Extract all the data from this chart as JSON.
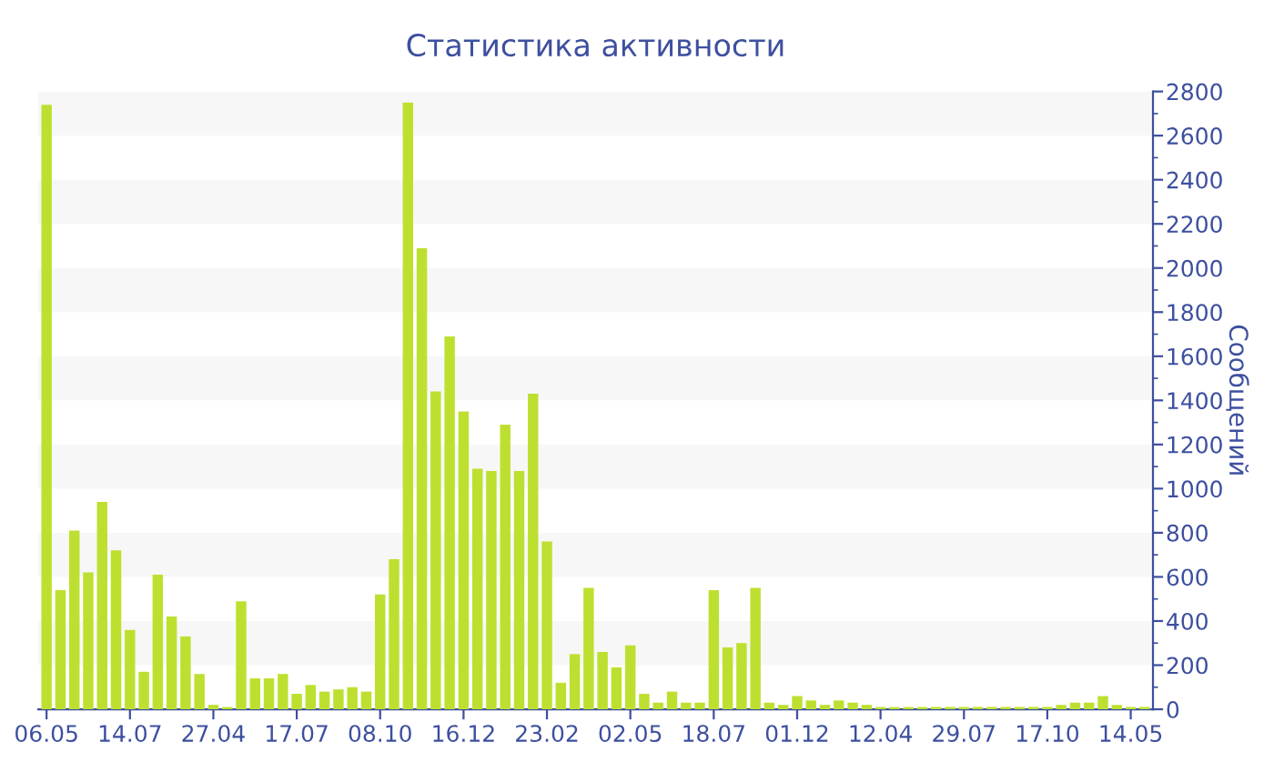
{
  "chart_data": {
    "type": "bar",
    "title": "Статистика активности",
    "ylabel": "Сообщений",
    "categories": [
      "06.05",
      null,
      null,
      null,
      null,
      null,
      "14.07",
      null,
      null,
      null,
      null,
      null,
      "27.04",
      null,
      null,
      null,
      null,
      null,
      "17.07",
      null,
      null,
      null,
      null,
      null,
      "08.10",
      null,
      null,
      null,
      null,
      null,
      "16.12",
      null,
      null,
      null,
      null,
      null,
      "23.02",
      null,
      null,
      null,
      null,
      null,
      "02.05",
      null,
      null,
      null,
      null,
      null,
      "18.07",
      null,
      null,
      null,
      null,
      null,
      "01.12",
      null,
      null,
      null,
      null,
      null,
      "12.04",
      null,
      null,
      null,
      null,
      null,
      "29.07",
      null,
      null,
      null,
      null,
      null,
      "17.10",
      null,
      null,
      null,
      null,
      null,
      "14.05",
      null
    ],
    "values": [
      2740,
      540,
      810,
      620,
      940,
      720,
      360,
      170,
      610,
      420,
      330,
      160,
      20,
      10,
      490,
      140,
      140,
      160,
      70,
      110,
      80,
      90,
      100,
      80,
      520,
      680,
      2750,
      2090,
      1440,
      1690,
      1350,
      1090,
      1080,
      1290,
      1080,
      1430,
      760,
      120,
      250,
      550,
      260,
      190,
      290,
      70,
      30,
      80,
      30,
      30,
      540,
      280,
      300,
      550,
      30,
      20,
      60,
      40,
      20,
      40,
      30,
      20,
      10,
      10,
      10,
      10,
      10,
      10,
      10,
      10,
      10,
      10,
      10,
      10,
      10,
      20,
      30,
      30,
      60,
      20,
      10,
      10
    ],
    "color": "#bde030",
    "ylim": [
      0,
      2800
    ],
    "yticks": [
      0,
      200,
      400,
      600,
      800,
      1000,
      1200,
      1400,
      1600,
      1800,
      2000,
      2200,
      2400,
      2600,
      2800
    ],
    "bands": [
      {
        "axis": "y",
        "from": 200,
        "to": 400,
        "color": "#f7f7f7"
      },
      {
        "axis": "y",
        "from": 600,
        "to": 800,
        "color": "#f7f7f7"
      },
      {
        "axis": "y",
        "from": 1000,
        "to": 1200,
        "color": "#f7f7f7"
      },
      {
        "axis": "y",
        "from": 1400,
        "to": 1600,
        "color": "#f7f7f7"
      },
      {
        "axis": "y",
        "from": 1800,
        "to": 2000,
        "color": "#f7f7f7"
      },
      {
        "axis": "y",
        "from": 2200,
        "to": 2400,
        "color": "#f7f7f7"
      },
      {
        "axis": "y",
        "from": 2600,
        "to": 2800,
        "color": "#f7f7f7"
      }
    ]
  }
}
